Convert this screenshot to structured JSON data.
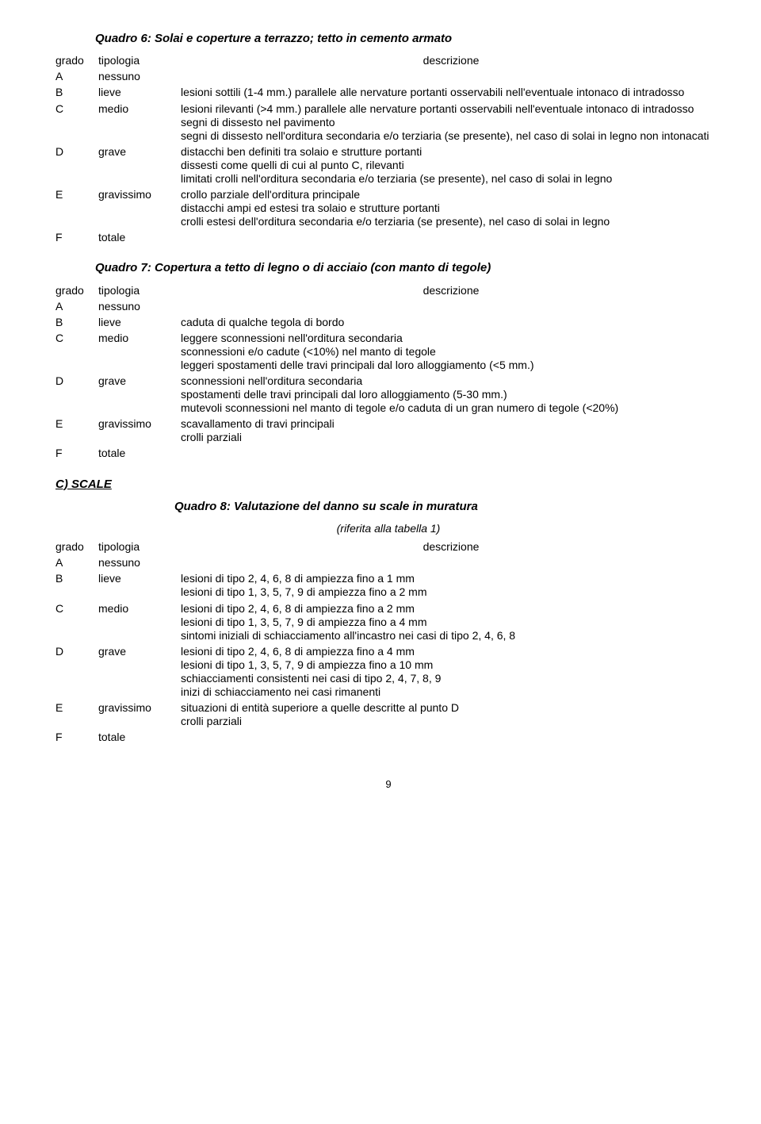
{
  "quadro6": {
    "title": "Quadro 6: Solai e coperture a terrazzo; tetto in cemento armato",
    "header": {
      "grado": "grado",
      "tipologia": "tipologia",
      "descrizione": "descrizione"
    },
    "rows": [
      {
        "g": "A",
        "t": "nessuno",
        "d": []
      },
      {
        "g": "B",
        "t": "lieve",
        "d": [
          "lesioni sottili (1-4 mm.) parallele alle nervature portanti osservabili nell'eventuale intonaco di intradosso"
        ]
      },
      {
        "g": "C",
        "t": "medio",
        "d": [
          "lesioni rilevanti (>4 mm.) parallele alle nervature portanti osservabili nell'eventuale intonaco di intradosso",
          "segni di dissesto nel pavimento",
          "segni di dissesto nell'orditura secondaria e/o terziaria (se presente), nel caso di solai in legno non intonacati"
        ]
      },
      {
        "g": "D",
        "t": "grave",
        "d": [
          "distacchi ben definiti tra solaio e strutture portanti",
          "dissesti come quelli di cui al punto C, rilevanti",
          "limitati crolli nell'orditura secondaria e/o terziaria (se presente), nel caso di solai in legno"
        ]
      },
      {
        "g": "E",
        "t": "gravissimo",
        "d": [
          "crollo parziale dell'orditura principale",
          "distacchi ampi ed estesi tra solaio e strutture portanti",
          "crolli estesi dell'orditura secondaria e/o terziaria (se presente), nel caso di solai in legno"
        ]
      },
      {
        "g": "F",
        "t": "totale",
        "d": []
      }
    ]
  },
  "quadro7": {
    "title": "Quadro 7: Copertura a tetto di legno o di acciaio (con manto di tegole)",
    "header": {
      "grado": "grado",
      "tipologia": "tipologia",
      "descrizione": "descrizione"
    },
    "rows": [
      {
        "g": "A",
        "t": "nessuno",
        "d": []
      },
      {
        "g": "B",
        "t": "lieve",
        "d": [
          "caduta di qualche tegola di bordo"
        ]
      },
      {
        "g": "C",
        "t": "medio",
        "d": [
          "leggere sconnessioni nell'orditura secondaria",
          "sconnessioni e/o cadute (<10%) nel manto di tegole",
          "leggeri spostamenti delle travi principali dal loro alloggiamento (<5 mm.)"
        ]
      },
      {
        "g": "D",
        "t": "grave",
        "d": [
          "sconnessioni nell'orditura secondaria",
          "spostamenti delle travi principali dal loro alloggiamento (5-30 mm.)",
          "mutevoli sconnessioni nel manto di tegole e/o caduta di un gran numero di tegole (<20%)"
        ]
      },
      {
        "g": "E",
        "t": "gravissimo",
        "d": [
          "scavallamento di travi principali",
          "crolli parziali"
        ]
      },
      {
        "g": "F",
        "t": "totale",
        "d": []
      }
    ]
  },
  "sectionC": {
    "heading": "C) SCALE"
  },
  "quadro8": {
    "title": "Quadro 8: Valutazione del danno su scale in muratura",
    "subtitle": "(riferita alla tabella 1)",
    "header": {
      "grado": "grado",
      "tipologia": "tipologia",
      "descrizione": "descrizione"
    },
    "rows": [
      {
        "g": "A",
        "t": "nessuno",
        "d": []
      },
      {
        "g": "B",
        "t": "lieve",
        "d": [
          "lesioni di tipo 2, 4, 6, 8 di ampiezza fino a 1 mm",
          "lesioni di tipo 1, 3, 5, 7, 9 di ampiezza fino a 2 mm"
        ]
      },
      {
        "g": "C",
        "t": "medio",
        "d": [
          "lesioni di tipo 2, 4, 6, 8 di ampiezza fino a 2 mm",
          "lesioni di tipo 1, 3, 5, 7, 9 di ampiezza fino a 4 mm",
          "sintomi iniziali di schiacciamento all'incastro nei casi di tipo 2, 4, 6, 8"
        ]
      },
      {
        "g": "D",
        "t": "grave",
        "d": [
          "lesioni di tipo 2, 4, 6, 8 di ampiezza fino a 4 mm",
          "lesioni di tipo 1, 3, 5, 7, 9 di ampiezza fino a 10 mm",
          "schiacciamenti consistenti nei casi di tipo 2, 4, 7, 8, 9",
          "inizi di schiacciamento nei casi rimanenti"
        ]
      },
      {
        "g": "E",
        "t": "gravissimo",
        "d": [
          "situazioni di entità superiore a quelle descritte al punto D",
          "crolli parziali"
        ]
      },
      {
        "g": "F",
        "t": "totale",
        "d": []
      }
    ]
  },
  "page_number": "9"
}
